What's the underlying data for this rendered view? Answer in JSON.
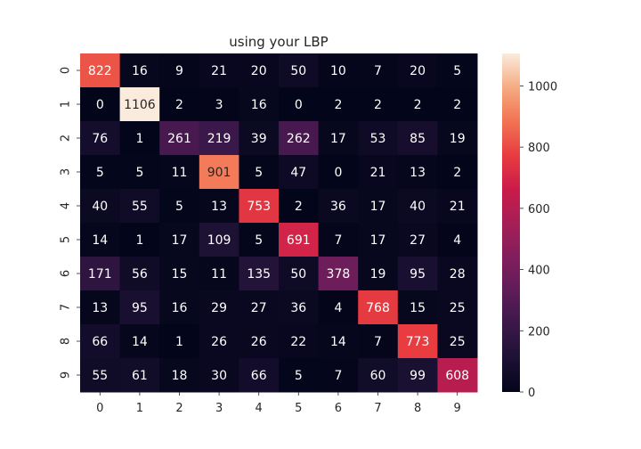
{
  "chart_data": {
    "type": "heatmap",
    "title": "using your LBP",
    "x_tick_labels": [
      "0",
      "1",
      "2",
      "3",
      "4",
      "5",
      "6",
      "7",
      "8",
      "9"
    ],
    "y_tick_labels": [
      "0",
      "1",
      "2",
      "3",
      "4",
      "5",
      "6",
      "7",
      "8",
      "9"
    ],
    "values": [
      [
        822,
        16,
        9,
        21,
        20,
        50,
        10,
        7,
        20,
        5
      ],
      [
        0,
        1106,
        2,
        3,
        16,
        0,
        2,
        2,
        2,
        2
      ],
      [
        76,
        1,
        261,
        219,
        39,
        262,
        17,
        53,
        85,
        19
      ],
      [
        5,
        5,
        11,
        901,
        5,
        47,
        0,
        21,
        13,
        2
      ],
      [
        40,
        55,
        5,
        13,
        753,
        2,
        36,
        17,
        40,
        21
      ],
      [
        14,
        1,
        17,
        109,
        5,
        691,
        7,
        17,
        27,
        4
      ],
      [
        171,
        56,
        15,
        11,
        135,
        50,
        378,
        19,
        95,
        28
      ],
      [
        13,
        95,
        16,
        29,
        27,
        36,
        4,
        768,
        15,
        25
      ],
      [
        66,
        14,
        1,
        26,
        26,
        22,
        14,
        7,
        773,
        25
      ],
      [
        55,
        61,
        18,
        30,
        66,
        5,
        7,
        60,
        99,
        608
      ]
    ],
    "colorbar": {
      "min": 0,
      "max": 1106,
      "ticks": [
        0,
        200,
        400,
        600,
        800,
        1000
      ]
    },
    "colormap": "rocket",
    "text_colors": {
      "on_dark": "#ffffff",
      "on_light": "#262626"
    }
  }
}
